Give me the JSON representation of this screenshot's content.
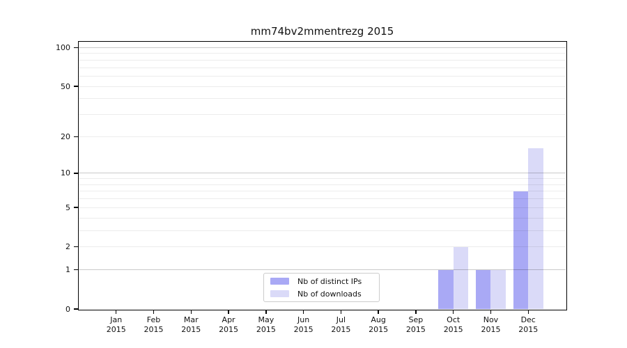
{
  "title": "mm74bv2mmentrezg 2015",
  "colors": {
    "ips": "#a9a9f5",
    "downloads": "#dadaf8",
    "spine": "#000000"
  },
  "chart_data": {
    "type": "bar",
    "title": "mm74bv2mmentrezg 2015",
    "categories": [
      "Jan 2015",
      "Feb 2015",
      "Mar 2015",
      "Apr 2015",
      "May 2015",
      "Jun 2015",
      "Jul 2015",
      "Aug 2015",
      "Sep 2015",
      "Oct 2015",
      "Nov 2015",
      "Dec 2015"
    ],
    "series": [
      {
        "name": "Nb of distinct IPs",
        "color_key": "ips",
        "values": [
          0,
          0,
          0,
          0,
          0,
          0,
          0,
          0,
          0,
          1,
          1,
          7
        ]
      },
      {
        "name": "Nb of downloads",
        "color_key": "downloads",
        "values": [
          0,
          0,
          0,
          0,
          0,
          0,
          0,
          0,
          0,
          2,
          1,
          16
        ]
      }
    ],
    "yscale": "log1p",
    "yticks": [
      0,
      1,
      2,
      5,
      10,
      20,
      50,
      100
    ],
    "grid_major_values": [
      1,
      10,
      100
    ],
    "grid_minor_values": [
      2,
      3,
      4,
      5,
      6,
      7,
      8,
      9,
      20,
      30,
      40,
      50,
      60,
      70,
      80,
      90
    ],
    "ylim": [
      0,
      111
    ],
    "xlabel": "",
    "ylabel": "",
    "grid": true,
    "legend_position": "lower center"
  }
}
